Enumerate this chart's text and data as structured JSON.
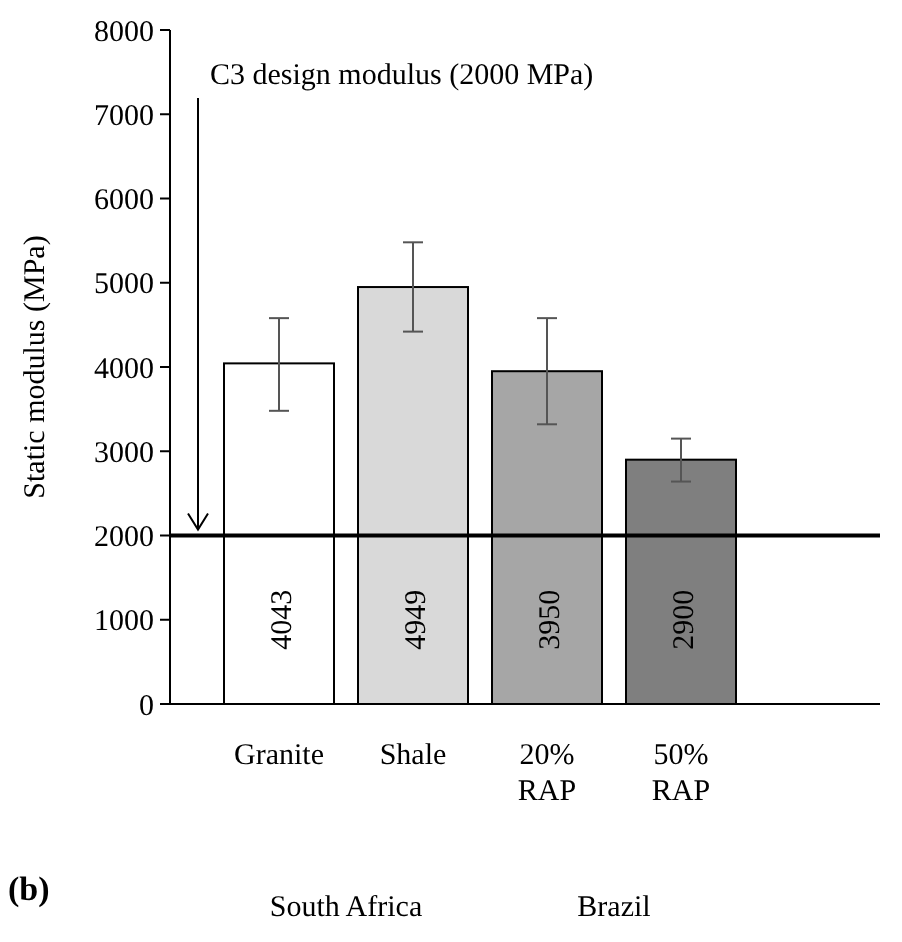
{
  "chart_data": {
    "type": "bar",
    "ylabel": "Static modulus (MPa)",
    "categories": [
      "Granite",
      "Shale",
      "20% RAP",
      "50% RAP"
    ],
    "values": [
      4043,
      4949,
      3950,
      2900
    ],
    "colors": [
      "#ffffff",
      "#d9d9d9",
      "#a6a6a6",
      "#7f7f7f"
    ],
    "errors": [
      [
        3480,
        4580
      ],
      [
        4420,
        5480
      ],
      [
        3320,
        4580
      ],
      [
        2640,
        3150
      ]
    ],
    "data_labels": true,
    "ylim": [
      0,
      8000
    ],
    "yticks": [
      0,
      1000,
      2000,
      3000,
      4000,
      5000,
      6000,
      7000,
      8000
    ],
    "ref_lines": [
      {
        "axis": "y",
        "value": 2000,
        "label": "C3 design modulus (2000 MPa)",
        "color": "#000000"
      }
    ],
    "annotations": [
      "South Africa",
      "Brazil",
      "(b)"
    ],
    "grid": false
  }
}
